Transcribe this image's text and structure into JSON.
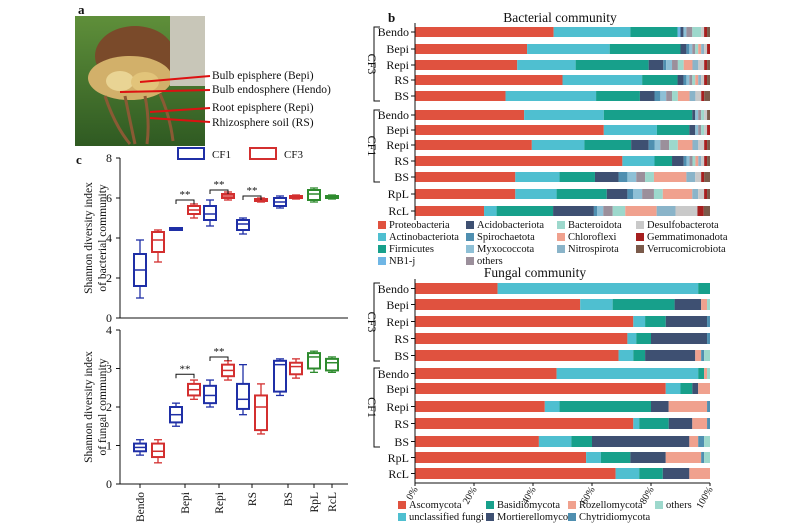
{
  "panel_labels": {
    "a": "a",
    "b": "b",
    "c": "c"
  },
  "photo_annotations": [
    "Bulb episphere (Bepi)",
    "Bulb endosphere (Hendo)",
    "Root episphere (Repi)",
    "Rhizosphere soil (RS)"
  ],
  "colors": {
    "blue": "#1f2fa6",
    "red": "#d32f2f",
    "green": "#2e8b2e",
    "proteo": "#e0523f",
    "actino": "#4fbfd0",
    "firmi": "#17a08b",
    "nb1j": "#6fb6e5",
    "acido": "#3e5072",
    "spiro": "#4f8fb0",
    "myxo": "#8ec0d6",
    "others": "#9b8f9b",
    "bactero": "#9dd8cc",
    "chloro": "#f0a18e",
    "nitro": "#8ab4c9",
    "desulfo": "#c9c9c9",
    "gemma": "#a61f1f",
    "verru": "#7a5a4a",
    "asco": "#e0523f",
    "uncl": "#4fbfd0",
    "basidio": "#17a08b",
    "mort": "#3e5072",
    "rozel": "#f0a18e",
    "chytrid": "#4f8fb0",
    "fothers": "#9dd8cc"
  },
  "chart_data": [
    {
      "type": "box",
      "ylabel": "Shannon diversity index of bacterial community",
      "ylim": [
        0,
        8
      ],
      "yticks": [
        "0",
        "2",
        "4",
        "6",
        "8"
      ],
      "legend": [
        "CF1",
        "CF3"
      ],
      "significance": [
        "**",
        "**",
        "**"
      ],
      "boxes": [
        {
          "category": "Bendo",
          "group": "CF1",
          "min": 1.0,
          "q1": 1.6,
          "median": 2.4,
          "q3": 3.2,
          "max": 3.9
        },
        {
          "category": "Bendo",
          "group": "CF3",
          "min": 2.8,
          "q1": 3.3,
          "median": 3.9,
          "q3": 4.3,
          "max": 4.4
        },
        {
          "category": "Bepi",
          "group": "CF1",
          "min": 4.4,
          "q1": 4.4,
          "median": 4.45,
          "q3": 4.5,
          "max": 4.5
        },
        {
          "category": "Bepi",
          "group": "CF3",
          "min": 5.0,
          "q1": 5.2,
          "median": 5.4,
          "q3": 5.6,
          "max": 5.7
        },
        {
          "category": "Repi",
          "group": "CF1",
          "min": 4.6,
          "q1": 4.9,
          "median": 5.2,
          "q3": 5.6,
          "max": 5.9
        },
        {
          "category": "Repi",
          "group": "CF3",
          "min": 5.9,
          "q1": 6.0,
          "median": 6.1,
          "q3": 6.2,
          "max": 6.3
        },
        {
          "category": "RS",
          "group": "CF1",
          "min": 4.2,
          "q1": 4.4,
          "median": 4.7,
          "q3": 4.9,
          "max": 5.0
        },
        {
          "category": "RS",
          "group": "CF3",
          "min": 5.8,
          "q1": 5.85,
          "median": 5.9,
          "q3": 5.95,
          "max": 6.0
        },
        {
          "category": "BS",
          "group": "CF1",
          "min": 5.5,
          "q1": 5.6,
          "median": 5.8,
          "q3": 6.0,
          "max": 6.1
        },
        {
          "category": "BS",
          "group": "CF3",
          "min": 5.95,
          "q1": 6.0,
          "median": 6.05,
          "q3": 6.1,
          "max": 6.15
        },
        {
          "category": "RpL",
          "group": "GREEN",
          "min": 5.8,
          "q1": 5.9,
          "median": 6.2,
          "q3": 6.4,
          "max": 6.5
        },
        {
          "category": "RcL",
          "group": "GREEN",
          "min": 5.95,
          "q1": 6.0,
          "median": 6.05,
          "q3": 6.1,
          "max": 6.15
        }
      ]
    },
    {
      "type": "box",
      "ylabel": "Shannon diversity index of fungal community",
      "ylim": [
        0,
        4
      ],
      "yticks": [
        "0",
        "1",
        "2",
        "3",
        "4"
      ],
      "categories": [
        "Bendo",
        "Bepi",
        "Repi",
        "RS",
        "BS",
        "RpL",
        "RcL"
      ],
      "significance": [
        "**",
        "**"
      ],
      "boxes": [
        {
          "category": "Bendo",
          "group": "CF1",
          "min": 0.75,
          "q1": 0.85,
          "median": 0.95,
          "q3": 1.05,
          "max": 1.15
        },
        {
          "category": "Bendo",
          "group": "CF3",
          "min": 0.55,
          "q1": 0.7,
          "median": 0.85,
          "q3": 1.05,
          "max": 1.15
        },
        {
          "category": "Bepi",
          "group": "CF1",
          "min": 1.5,
          "q1": 1.6,
          "median": 1.8,
          "q3": 2.0,
          "max": 2.1
        },
        {
          "category": "Bepi",
          "group": "CF3",
          "min": 2.2,
          "q1": 2.3,
          "median": 2.45,
          "q3": 2.6,
          "max": 2.7
        },
        {
          "category": "Repi",
          "group": "CF1",
          "min": 2.0,
          "q1": 2.1,
          "median": 2.3,
          "q3": 2.55,
          "max": 2.7
        },
        {
          "category": "Repi",
          "group": "CF3",
          "min": 2.7,
          "q1": 2.8,
          "median": 2.95,
          "q3": 3.1,
          "max": 3.2
        },
        {
          "category": "RS",
          "group": "CF1",
          "min": 1.8,
          "q1": 1.95,
          "median": 2.2,
          "q3": 2.6,
          "max": 3.1
        },
        {
          "category": "RS",
          "group": "CF3",
          "min": 1.3,
          "q1": 1.4,
          "median": 2.0,
          "q3": 2.3,
          "max": 2.6
        },
        {
          "category": "BS",
          "group": "CF1",
          "min": 2.3,
          "q1": 2.4,
          "median": 3.1,
          "q3": 3.2,
          "max": 3.25
        },
        {
          "category": "BS",
          "group": "CF3",
          "min": 2.75,
          "q1": 2.85,
          "median": 3.05,
          "q3": 3.15,
          "max": 3.25
        },
        {
          "category": "RpL",
          "group": "GREEN",
          "min": 2.9,
          "q1": 3.0,
          "median": 3.3,
          "q3": 3.4,
          "max": 3.45
        },
        {
          "category": "RcL",
          "group": "GREEN",
          "min": 2.9,
          "q1": 2.95,
          "median": 3.15,
          "q3": 3.25,
          "max": 3.3
        }
      ]
    },
    {
      "type": "stacked-bar-horizontal",
      "title": "Bacterial community",
      "categories": [
        "Bendo",
        "Bepi",
        "Repi",
        "RS",
        "BS",
        "Bendo",
        "Bepi",
        "Repi",
        "RS",
        "BS",
        "RpL",
        "RcL"
      ],
      "groups": [
        {
          "label": "CF3",
          "rows": [
            0,
            4
          ]
        },
        {
          "label": "CF1",
          "rows": [
            5,
            9
          ]
        }
      ],
      "series": [
        {
          "name": "Proteobacteria",
          "color": "proteo",
          "values": [
            47,
            38,
            35,
            50,
            31,
            37,
            64,
            40,
            71,
            34,
            34,
            22
          ]
        },
        {
          "name": "Actinobacteriota",
          "color": "actino",
          "values": [
            26,
            28,
            20,
            27,
            31,
            27,
            18,
            18,
            11,
            15,
            14,
            4
          ]
        },
        {
          "name": "Firmicutes",
          "color": "firmi",
          "values": [
            16,
            24,
            25,
            12,
            15,
            30,
            11,
            16,
            6,
            12,
            17,
            18
          ]
        },
        {
          "name": "NB1-j",
          "color": "nb1j",
          "values": [
            1,
            0,
            0,
            0,
            0,
            0,
            0,
            0,
            0,
            0,
            0,
            0
          ]
        },
        {
          "name": "Acidobacteriota",
          "color": "acido",
          "values": [
            1,
            2,
            5,
            2,
            5,
            1,
            2,
            6,
            4,
            8,
            7,
            13
          ]
        },
        {
          "name": "Spirochaetota",
          "color": "spiro",
          "values": [
            0,
            1,
            1,
            1,
            2,
            0,
            0,
            2,
            1,
            3,
            2,
            1
          ]
        },
        {
          "name": "Myxococcota",
          "color": "myxo",
          "values": [
            1,
            1,
            2,
            1,
            2,
            1,
            1,
            2,
            1,
            3,
            3,
            2
          ]
        },
        {
          "name": "others",
          "color": "others",
          "values": [
            2,
            1,
            2,
            1,
            2,
            1,
            1,
            3,
            1,
            3,
            4,
            3
          ]
        },
        {
          "name": "Bacteroidota",
          "color": "bactero",
          "values": [
            3,
            1,
            2,
            1,
            2,
            1,
            1,
            3,
            1,
            3,
            3,
            4
          ]
        },
        {
          "name": "Chloroflexi",
          "color": "chloro",
          "values": [
            0,
            1,
            3,
            1,
            4,
            0,
            0,
            5,
            1,
            11,
            10,
            10
          ]
        },
        {
          "name": "Nitrospirota",
          "color": "nitro",
          "values": [
            0,
            1,
            2,
            1,
            2,
            0,
            0,
            2,
            1,
            3,
            2,
            6
          ]
        },
        {
          "name": "Desulfobacterota",
          "color": "desulfo",
          "values": [
            1,
            1,
            2,
            1,
            2,
            1,
            1,
            2,
            1,
            2,
            2,
            7
          ]
        },
        {
          "name": "Gemmatimonadota",
          "color": "gemma",
          "values": [
            1,
            1,
            1,
            1,
            1,
            0,
            1,
            1,
            1,
            1,
            1,
            2
          ]
        },
        {
          "name": "Verrucomicrobiota",
          "color": "verru",
          "values": [
            1,
            0,
            1,
            1,
            2,
            1,
            0,
            1,
            1,
            2,
            1,
            2
          ]
        }
      ]
    },
    {
      "type": "stacked-bar-horizontal",
      "title": "Fungal community",
      "categories": [
        "Bendo",
        "Bepi",
        "Repi",
        "RS",
        "BS",
        "Bendo",
        "Bepi",
        "Repi",
        "RS",
        "BS",
        "RpL",
        "RcL"
      ],
      "groups": [
        {
          "label": "CF3",
          "rows": [
            0,
            4
          ]
        },
        {
          "label": "CF1",
          "rows": [
            5,
            9
          ]
        }
      ],
      "xticks": [
        "0%",
        "20%",
        "40%",
        "60%",
        "80%",
        "100%"
      ],
      "series": [
        {
          "name": "Ascomycota",
          "color": "asco",
          "values": [
            28,
            56,
            74,
            72,
            69,
            48,
            85,
            44,
            74,
            42,
            58,
            68
          ]
        },
        {
          "name": "unclassified fungi",
          "color": "uncl",
          "values": [
            68,
            11,
            4,
            3,
            5,
            48,
            5,
            5,
            2,
            11,
            5,
            8
          ]
        },
        {
          "name": "Basidiomycota",
          "color": "basidio",
          "values": [
            4,
            21,
            7,
            5,
            4,
            2,
            4,
            31,
            10,
            7,
            10,
            8
          ]
        },
        {
          "name": "Mortierellomycota",
          "color": "mort",
          "values": [
            0,
            9,
            14,
            19,
            17,
            0,
            2,
            6,
            8,
            33,
            12,
            9
          ]
        },
        {
          "name": "Rozellomycota",
          "color": "rozel",
          "values": [
            0,
            2,
            0,
            0,
            2,
            1,
            4,
            13,
            5,
            3,
            12,
            7
          ]
        },
        {
          "name": "Chytridiomycota",
          "color": "chytrid",
          "values": [
            0,
            0,
            1,
            1,
            1,
            0,
            0,
            1,
            1,
            2,
            1,
            0
          ]
        },
        {
          "name": "others",
          "color": "fothers",
          "values": [
            0,
            1,
            0,
            0,
            2,
            1,
            0,
            0,
            0,
            2,
            2,
            0
          ]
        }
      ]
    }
  ]
}
